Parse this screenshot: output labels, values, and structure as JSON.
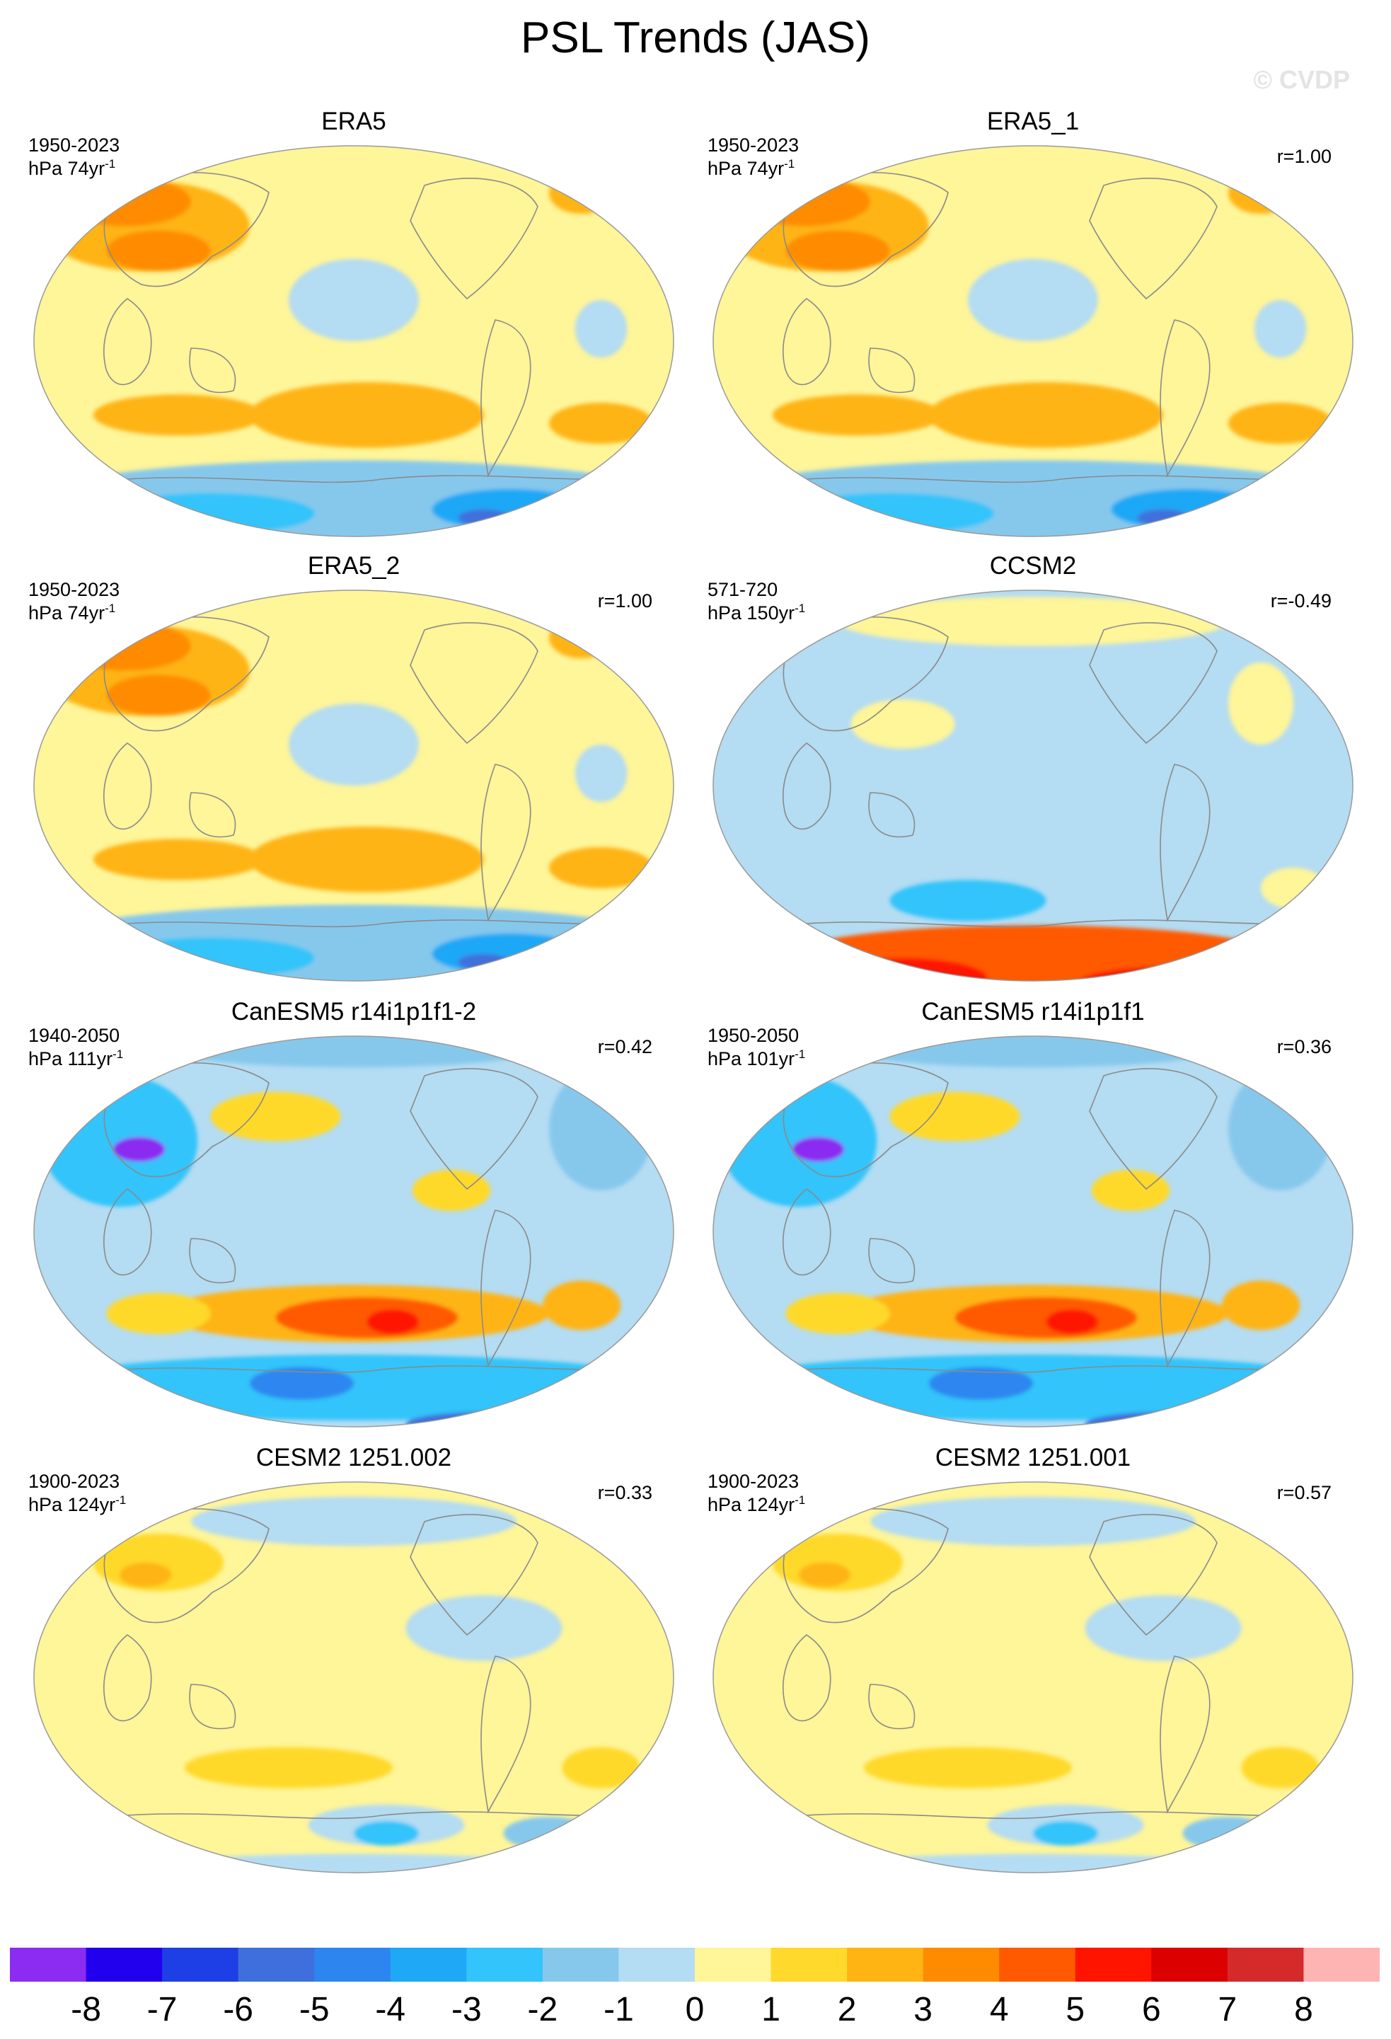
{
  "title": "PSL Trends (JAS)",
  "credit": "© CVDP",
  "chart_data": [
    {
      "type": "heatmap",
      "title": "ERA5",
      "years": "1950-2023",
      "units_main": "hPa 74yr",
      "units_exp": "-1",
      "corr": "",
      "style": "era5"
    },
    {
      "type": "heatmap",
      "title": "ERA5_1",
      "years": "1950-2023",
      "units_main": "hPa 74yr",
      "units_exp": "-1",
      "corr": "r=1.00",
      "style": "era5"
    },
    {
      "type": "heatmap",
      "title": "ERA5_2",
      "years": "1950-2023",
      "units_main": "hPa 74yr",
      "units_exp": "-1",
      "corr": "r=1.00",
      "style": "era5"
    },
    {
      "type": "heatmap",
      "title": "CCSM2",
      "years": "571-720",
      "units_main": "hPa 150yr",
      "units_exp": "-1",
      "corr": "r=-0.49",
      "style": "ccsm2"
    },
    {
      "type": "heatmap",
      "title": "CanESM5 r14i1p1f1-2",
      "years": "1940-2050",
      "units_main": "hPa 111yr",
      "units_exp": "-1",
      "corr": "r=0.42",
      "style": "canesm"
    },
    {
      "type": "heatmap",
      "title": "CanESM5 r14i1p1f1",
      "years": "1950-2050",
      "units_main": "hPa 101yr",
      "units_exp": "-1",
      "corr": "r=0.36",
      "style": "canesm"
    },
    {
      "type": "heatmap",
      "title": "CESM2 1251.002",
      "years": "1900-2023",
      "units_main": "hPa 124yr",
      "units_exp": "-1",
      "corr": "r=0.33",
      "style": "cesm"
    },
    {
      "type": "heatmap",
      "title": "CESM2 1251.001",
      "years": "1900-2023",
      "units_main": "hPa 124yr",
      "units_exp": "-1",
      "corr": "r=0.57",
      "style": "cesm"
    }
  ],
  "colorbar": {
    "colors": [
      "#8b2cf0",
      "#2200ee",
      "#1e3fe6",
      "#3f6fdc",
      "#2d86f0",
      "#1ea8f6",
      "#32c4fa",
      "#86c8ec",
      "#b4dcf2",
      "#fff599",
      "#ffd92c",
      "#ffb414",
      "#ff8c00",
      "#ff5a00",
      "#ff1400",
      "#dc0000",
      "#d42a2a",
      "#ffb4b4"
    ],
    "labels": [
      "-8",
      "-7",
      "-6",
      "-5",
      "-4",
      "-3",
      "-2",
      "-1",
      "0",
      "1",
      "2",
      "3",
      "4",
      "5",
      "6",
      "7",
      "8"
    ]
  }
}
